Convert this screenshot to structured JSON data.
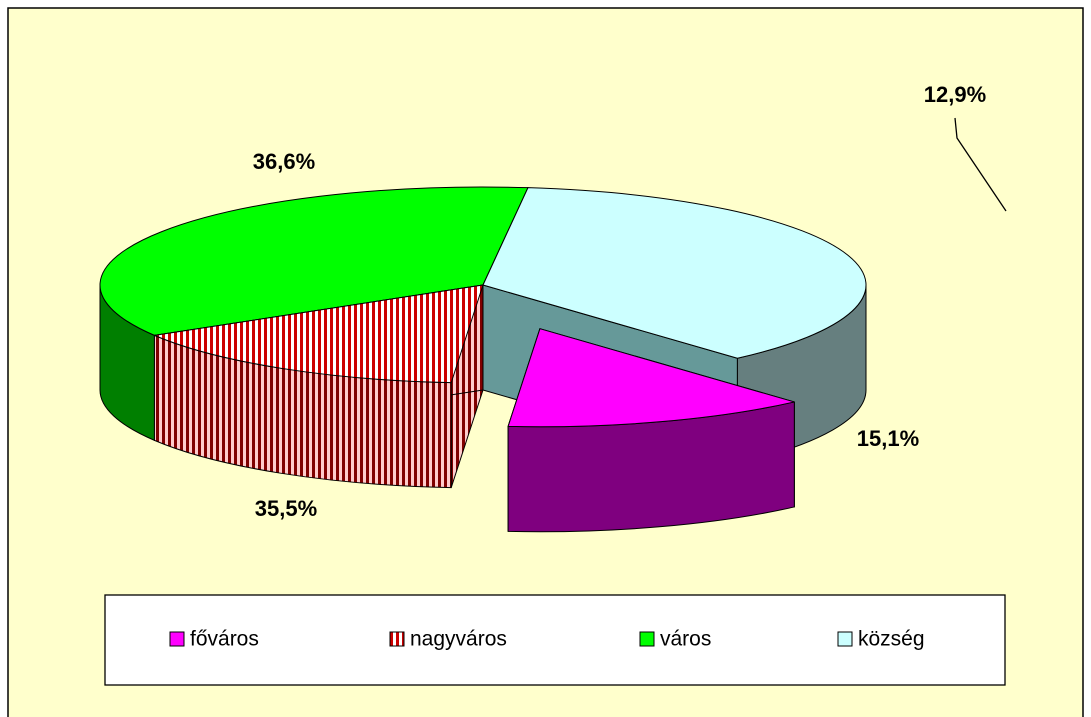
{
  "chart_data": {
    "type": "pie3d",
    "categories": [
      "főváros",
      "nagyváros",
      "város",
      "község"
    ],
    "values": [
      12.9,
      15.1,
      35.5,
      36.6
    ],
    "value_labels": [
      "12,9%",
      "15,1%",
      "35,5%",
      "36,6%"
    ],
    "colors": [
      "#ff00ff",
      "#cc0000",
      "#00ff00",
      "#ccffff"
    ],
    "patterns": [
      null,
      "stripes",
      null,
      null
    ],
    "legend": "bottom"
  }
}
